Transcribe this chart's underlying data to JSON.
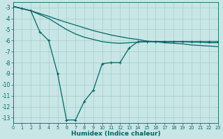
{
  "xlabel": "Humidex (Indice chaleur)",
  "background_color": "#c8e6e6",
  "grid_color": "#a8cccc",
  "line_color": "#006666",
  "xlim": [
    0,
    23
  ],
  "ylim": [
    -13.5,
    -2.5
  ],
  "yticks": [
    -3,
    -4,
    -5,
    -6,
    -7,
    -8,
    -9,
    -10,
    -11,
    -12,
    -13
  ],
  "xticks": [
    0,
    1,
    2,
    3,
    4,
    5,
    6,
    7,
    8,
    9,
    10,
    11,
    12,
    13,
    14,
    15,
    16,
    17,
    18,
    19,
    20,
    21,
    22,
    23
  ],
  "line1_x": [
    0,
    1,
    2,
    3,
    4,
    5,
    6,
    7,
    8,
    9,
    10,
    11,
    12,
    13,
    14,
    15,
    16,
    17,
    18,
    19,
    20,
    21,
    22,
    23
  ],
  "line1_y": [
    -2.9,
    -3.1,
    -3.3,
    -3.55,
    -3.8,
    -4.1,
    -4.35,
    -4.6,
    -4.85,
    -5.1,
    -5.3,
    -5.5,
    -5.65,
    -5.8,
    -5.9,
    -6.05,
    -6.1,
    -6.2,
    -6.25,
    -6.3,
    -6.4,
    -6.45,
    -6.5,
    -6.55
  ],
  "line2_x": [
    0,
    1,
    2,
    3,
    4,
    5,
    6,
    7,
    8,
    9,
    10,
    11,
    12,
    13,
    14,
    15,
    16,
    17,
    18,
    19,
    20,
    21,
    22,
    23
  ],
  "line2_y": [
    -2.9,
    -3.1,
    -3.3,
    -3.65,
    -4.0,
    -4.5,
    -5.0,
    -5.4,
    -5.7,
    -5.9,
    -6.1,
    -6.2,
    -6.25,
    -6.2,
    -6.15,
    -6.1,
    -6.1,
    -6.1,
    -6.1,
    -6.1,
    -6.15,
    -6.15,
    -6.2,
    -6.2
  ],
  "line3_x": [
    0,
    1,
    2,
    3,
    4,
    5,
    6,
    7,
    8,
    9,
    10,
    11,
    12,
    13,
    14,
    15,
    16,
    17,
    18,
    19,
    20,
    21,
    22,
    23
  ],
  "line3_y": [
    -2.9,
    -3.1,
    -3.3,
    -5.2,
    -6.0,
    -9.0,
    -13.2,
    -13.2,
    -11.5,
    -10.5,
    -8.1,
    -8.0,
    -8.0,
    -6.7,
    -6.1,
    -6.1,
    -6.1,
    -6.1,
    -6.1,
    -6.1,
    -6.1,
    -6.1,
    -6.1,
    -6.1
  ]
}
